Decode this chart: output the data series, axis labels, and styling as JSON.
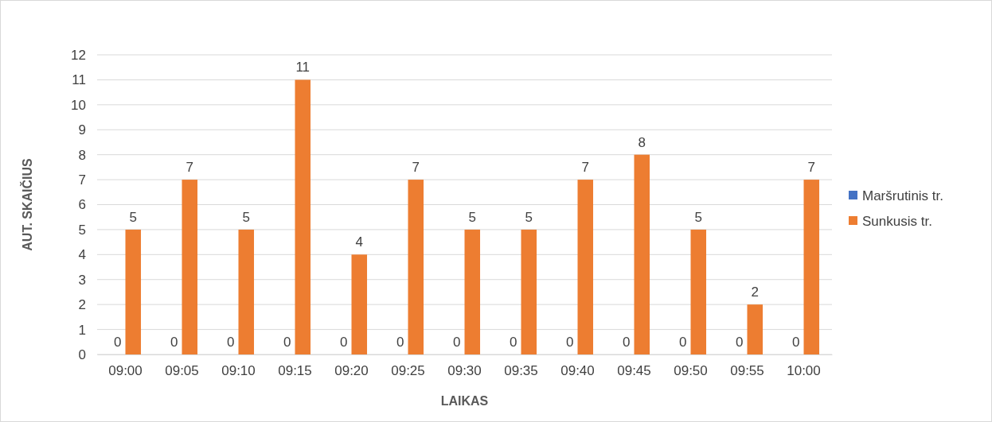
{
  "chart_data": {
    "type": "bar",
    "xlabel": "LAIKAS",
    "ylabel": "AUT. SKAIČIUS",
    "categories": [
      "09:00",
      "09:05",
      "09:10",
      "09:15",
      "09:20",
      "09:25",
      "09:30",
      "09:35",
      "09:40",
      "09:45",
      "09:50",
      "09:55",
      "10:00"
    ],
    "series": [
      {
        "name": "Maršrutinis tr.",
        "color": "#4472c4",
        "values": [
          0,
          0,
          0,
          0,
          0,
          0,
          0,
          0,
          0,
          0,
          0,
          0,
          0
        ]
      },
      {
        "name": "Sunkusis tr.",
        "color": "#ed7d31",
        "values": [
          5,
          7,
          5,
          11,
          4,
          7,
          5,
          5,
          7,
          8,
          5,
          2,
          7
        ]
      }
    ],
    "ylim": [
      0,
      12
    ],
    "yticks": [
      0,
      1,
      2,
      3,
      4,
      5,
      6,
      7,
      8,
      9,
      10,
      11,
      12
    ],
    "grid": "y",
    "legend": "right",
    "data_labels": true
  }
}
